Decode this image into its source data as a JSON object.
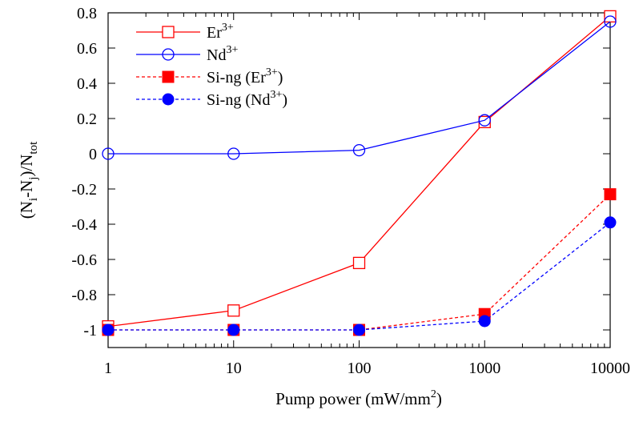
{
  "chart_data": {
    "type": "line",
    "xlabel": {
      "main": "Pump power (mW/mm",
      "sup": "2",
      "tail": ")"
    },
    "ylabel": {
      "open": "(N",
      "sub1": "i",
      "mid": "-N",
      "sub2": "j",
      "slash": ")/N",
      "sub3": "tot"
    },
    "x_scale": "log",
    "xlim": [
      1,
      10000
    ],
    "ylim": [
      -1.1,
      0.8
    ],
    "x_ticks": [
      1,
      10,
      100,
      1000,
      10000
    ],
    "x_tick_labels": [
      "1",
      "10",
      "100",
      "1000",
      "10000"
    ],
    "y_ticks": [
      -1,
      -0.8,
      -0.6,
      -0.4,
      -0.2,
      0,
      0.2,
      0.4,
      0.6,
      0.8
    ],
    "y_tick_labels": [
      "-1",
      "-0.8",
      "-0.6",
      "-0.4",
      "-0.2",
      "0",
      "0.2",
      "0.4",
      "0.6",
      "0.8"
    ],
    "grid": false,
    "legend_position": "top-left",
    "series": [
      {
        "name": "Er3+",
        "label_parts": {
          "pre": "Er",
          "sup": "3+",
          "post": ""
        },
        "color": "#ff0000",
        "line": "solid",
        "marker": "open-square",
        "x": [
          1,
          10,
          100,
          1000,
          10000
        ],
        "y": [
          -0.98,
          -0.89,
          -0.62,
          0.18,
          0.78
        ]
      },
      {
        "name": "Nd3+",
        "label_parts": {
          "pre": "Nd",
          "sup": "3+",
          "post": ""
        },
        "color": "#0000ff",
        "line": "solid",
        "marker": "open-circle",
        "x": [
          1,
          10,
          100,
          1000,
          10000
        ],
        "y": [
          0.0,
          0.0,
          0.02,
          0.19,
          0.75
        ]
      },
      {
        "name": "Si-ng (Er3+)",
        "label_parts": {
          "pre": "Si-ng (Er",
          "sup": "3+",
          "post": ")"
        },
        "color": "#ff0000",
        "line": "dashed",
        "marker": "filled-square",
        "x": [
          1,
          10,
          100,
          1000,
          10000
        ],
        "y": [
          -1.0,
          -1.0,
          -1.0,
          -0.91,
          -0.23
        ]
      },
      {
        "name": "Si-ng (Nd3+)",
        "label_parts": {
          "pre": "Si-ng (Nd",
          "sup": "3+",
          "post": ")"
        },
        "color": "#0000ff",
        "line": "dashed",
        "marker": "filled-circle",
        "x": [
          1,
          10,
          100,
          1000,
          10000
        ],
        "y": [
          -1.0,
          -1.0,
          -1.0,
          -0.95,
          -0.39
        ]
      }
    ]
  }
}
